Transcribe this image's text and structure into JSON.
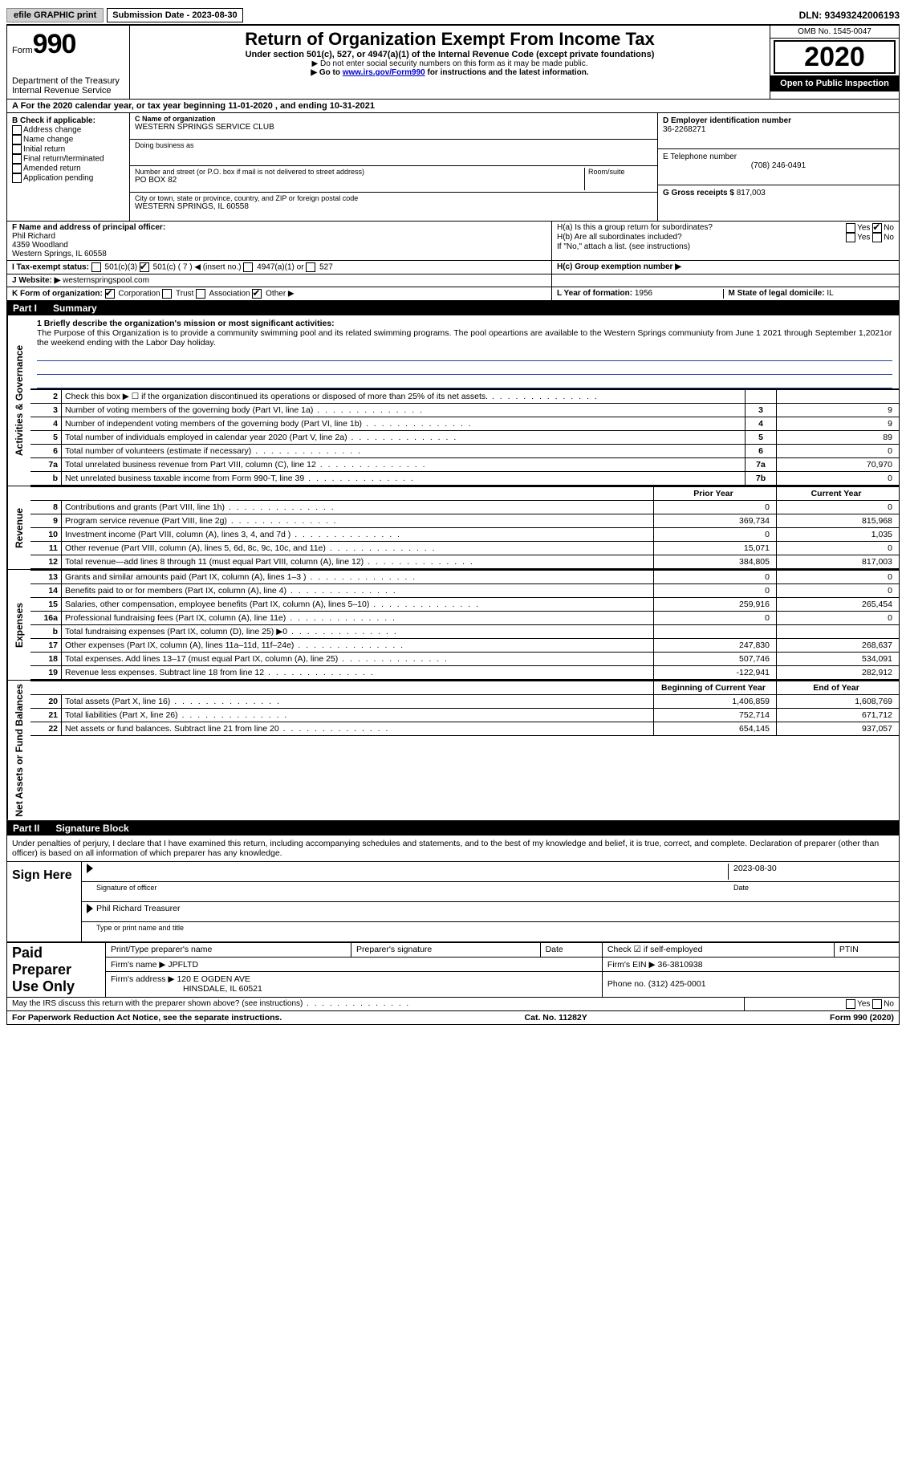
{
  "topbar": {
    "efile_label": "efile GRAPHIC print",
    "sub_date_label": "Submission Date - 2023-08-30",
    "dln": "DLN: 93493242006193"
  },
  "header": {
    "form_label": "Form",
    "form_number": "990",
    "dept": "Department of the Treasury",
    "irs": "Internal Revenue Service",
    "title": "Return of Organization Exempt From Income Tax",
    "subtitle": "Under section 501(c), 527, or 4947(a)(1) of the Internal Revenue Code (except private foundations)",
    "note1": "▶ Do not enter social security numbers on this form as it may be made public.",
    "note2_pre": "▶ Go to ",
    "note2_link": "www.irs.gov/Form990",
    "note2_post": " for instructions and the latest information.",
    "omb": "OMB No. 1545-0047",
    "year": "2020",
    "inspection": "Open to Public Inspection"
  },
  "line_a": "A For the 2020 calendar year, or tax year beginning 11-01-2020    , and ending 10-31-2021",
  "section_b": {
    "label": "B Check if applicable:",
    "items": [
      "Address change",
      "Name change",
      "Initial return",
      "Final return/terminated",
      "Amended return",
      "Application pending"
    ]
  },
  "section_c": {
    "name_label": "C Name of organization",
    "name": "WESTERN SPRINGS SERVICE CLUB",
    "dba_label": "Doing business as",
    "street_label": "Number and street (or P.O. box if mail is not delivered to street address)",
    "room_label": "Room/suite",
    "street": "PO BOX 82",
    "city_label": "City or town, state or province, country, and ZIP or foreign postal code",
    "city": "WESTERN SPRINGS, IL  60558"
  },
  "section_d": {
    "label": "D Employer identification number",
    "value": "36-2268271"
  },
  "section_e": {
    "label": "E Telephone number",
    "value": "(708) 246-0491"
  },
  "section_g": {
    "label": "G Gross receipts $",
    "value": "817,003"
  },
  "section_f": {
    "label": "F  Name and address of principal officer:",
    "name": "Phil Richard",
    "addr1": "4359 Woodland",
    "addr2": "Western Springs, IL  60558"
  },
  "section_h": {
    "a_label": "H(a)  Is this a group return for subordinates?",
    "b_label": "H(b)  Are all subordinates included?",
    "note": "If \"No,\" attach a list. (see instructions)",
    "c_label": "H(c)  Group exemption number ▶",
    "yes": "Yes",
    "no": "No"
  },
  "section_i": {
    "label": "I  Tax-exempt status:",
    "opts": [
      "501(c)(3)",
      "501(c) ( 7 ) ◀ (insert no.)",
      "4947(a)(1) or",
      "527"
    ]
  },
  "section_j": {
    "label": "J  Website: ▶",
    "value": "westernspringspool.com"
  },
  "section_k": {
    "label": "K Form of organization:",
    "opts": [
      "Corporation",
      "Trust",
      "Association",
      "Other ▶"
    ]
  },
  "section_l": {
    "label": "L Year of formation:",
    "value": "1956"
  },
  "section_m": {
    "label": "M State of legal domicile:",
    "value": "IL"
  },
  "part1": {
    "label": "Part I",
    "title": "Summary"
  },
  "mission": {
    "label": "1   Briefly describe the organization's mission or most significant activities:",
    "text": "The Purpose of this Organization is to provide a community swimming pool and its related swimming programs. The pool opeartions are available to the Western Springs communiuty from June 1 2021 through September 1,2021or the weekend ending with the Labor Day holiday."
  },
  "gov_rows": [
    {
      "n": "2",
      "d": "Check this box ▶ ☐ if the organization discontinued its operations or disposed of more than 25% of its net assets.",
      "num": "",
      "v": ""
    },
    {
      "n": "3",
      "d": "Number of voting members of the governing body (Part VI, line 1a)",
      "num": "3",
      "v": "9"
    },
    {
      "n": "4",
      "d": "Number of independent voting members of the governing body (Part VI, line 1b)",
      "num": "4",
      "v": "9"
    },
    {
      "n": "5",
      "d": "Total number of individuals employed in calendar year 2020 (Part V, line 2a)",
      "num": "5",
      "v": "89"
    },
    {
      "n": "6",
      "d": "Total number of volunteers (estimate if necessary)",
      "num": "6",
      "v": "0"
    },
    {
      "n": "7a",
      "d": "Total unrelated business revenue from Part VIII, column (C), line 12",
      "num": "7a",
      "v": "70,970"
    },
    {
      "n": "b",
      "d": "Net unrelated business taxable income from Form 990-T, line 39",
      "num": "7b",
      "v": "0"
    }
  ],
  "rev_head": {
    "prior": "Prior Year",
    "current": "Current Year"
  },
  "rev_rows": [
    {
      "n": "8",
      "d": "Contributions and grants (Part VIII, line 1h)",
      "p": "0",
      "c": "0"
    },
    {
      "n": "9",
      "d": "Program service revenue (Part VIII, line 2g)",
      "p": "369,734",
      "c": "815,968"
    },
    {
      "n": "10",
      "d": "Investment income (Part VIII, column (A), lines 3, 4, and 7d )",
      "p": "0",
      "c": "1,035"
    },
    {
      "n": "11",
      "d": "Other revenue (Part VIII, column (A), lines 5, 6d, 8c, 9c, 10c, and 11e)",
      "p": "15,071",
      "c": "0"
    },
    {
      "n": "12",
      "d": "Total revenue—add lines 8 through 11 (must equal Part VIII, column (A), line 12)",
      "p": "384,805",
      "c": "817,003"
    }
  ],
  "exp_rows": [
    {
      "n": "13",
      "d": "Grants and similar amounts paid (Part IX, column (A), lines 1–3 )",
      "p": "0",
      "c": "0"
    },
    {
      "n": "14",
      "d": "Benefits paid to or for members (Part IX, column (A), line 4)",
      "p": "0",
      "c": "0"
    },
    {
      "n": "15",
      "d": "Salaries, other compensation, employee benefits (Part IX, column (A), lines 5–10)",
      "p": "259,916",
      "c": "265,454"
    },
    {
      "n": "16a",
      "d": "Professional fundraising fees (Part IX, column (A), line 11e)",
      "p": "0",
      "c": "0"
    },
    {
      "n": "b",
      "d": "Total fundraising expenses (Part IX, column (D), line 25) ▶0",
      "p": "",
      "c": ""
    },
    {
      "n": "17",
      "d": "Other expenses (Part IX, column (A), lines 11a–11d, 11f–24e)",
      "p": "247,830",
      "c": "268,637"
    },
    {
      "n": "18",
      "d": "Total expenses. Add lines 13–17 (must equal Part IX, column (A), line 25)",
      "p": "507,746",
      "c": "534,091"
    },
    {
      "n": "19",
      "d": "Revenue less expenses. Subtract line 18 from line 12",
      "p": "-122,941",
      "c": "282,912"
    }
  ],
  "net_head": {
    "begin": "Beginning of Current Year",
    "end": "End of Year"
  },
  "net_rows": [
    {
      "n": "20",
      "d": "Total assets (Part X, line 16)",
      "p": "1,406,859",
      "c": "1,608,769"
    },
    {
      "n": "21",
      "d": "Total liabilities (Part X, line 26)",
      "p": "752,714",
      "c": "671,712"
    },
    {
      "n": "22",
      "d": "Net assets or fund balances. Subtract line 21 from line 20",
      "p": "654,145",
      "c": "937,057"
    }
  ],
  "sides": {
    "gov": "Activities & Governance",
    "rev": "Revenue",
    "exp": "Expenses",
    "net": "Net Assets or Fund Balances"
  },
  "part2": {
    "label": "Part II",
    "title": "Signature Block"
  },
  "declaration": "Under penalties of perjury, I declare that I have examined this return, including accompanying schedules and statements, and to the best of my knowledge and belief, it is true, correct, and complete. Declaration of preparer (other than officer) is based on all information of which preparer has any knowledge.",
  "sign": {
    "here": "Sign Here",
    "sig_officer": "Signature of officer",
    "date": "Date",
    "sig_date": "2023-08-30",
    "name_title": "Phil Richard  Treasurer",
    "type_label": "Type or print name and title"
  },
  "preparer": {
    "label": "Paid Preparer Use Only",
    "print_label": "Print/Type preparer's name",
    "sig_label": "Preparer's signature",
    "date_label": "Date",
    "check_label": "Check ☑ if self-employed",
    "ptin_label": "PTIN",
    "firm_name_label": "Firm's name    ▶",
    "firm_name": "JPFLTD",
    "firm_ein_label": "Firm's EIN ▶",
    "firm_ein": "36-3810938",
    "firm_addr_label": "Firm's address ▶",
    "firm_addr1": "120 E OGDEN AVE",
    "firm_addr2": "HINSDALE, IL  60521",
    "phone_label": "Phone no.",
    "phone": "(312) 425-0001"
  },
  "discuss": {
    "text": "May the IRS discuss this return with the preparer shown above? (see instructions)",
    "yes": "Yes",
    "no": "No"
  },
  "footer": {
    "left": "For Paperwork Reduction Act Notice, see the separate instructions.",
    "center": "Cat. No. 11282Y",
    "right": "Form 990 (2020)"
  }
}
